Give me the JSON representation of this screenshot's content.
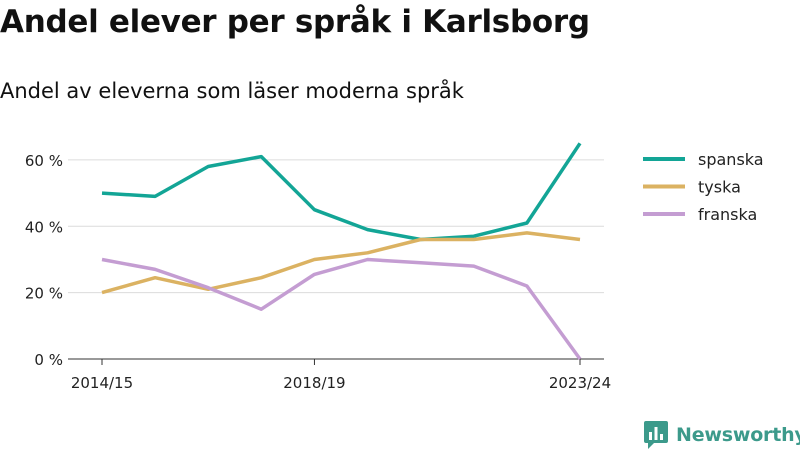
{
  "title": "Andel elever per språk i Karlsborg",
  "subtitle": "Andel av eleverna som läser moderna språk",
  "brand": "Newsworthy",
  "colors": {
    "spanska": "#13a596",
    "tyska": "#dbb262",
    "franska": "#c49dd2",
    "brand": "#3c9a8b"
  },
  "chart_data": {
    "type": "line",
    "x": [
      "2014/15",
      "2015/16",
      "2016/17",
      "2017/18",
      "2018/19",
      "2019/20",
      "2020/21",
      "2021/22",
      "2022/23",
      "2023/24"
    ],
    "x_tick_labels": [
      "2014/15",
      "2018/19",
      "2023/24"
    ],
    "y_ticks": [
      0,
      20,
      40,
      60
    ],
    "y_tick_labels": [
      "0 %",
      "20 %",
      "40 %",
      "60 %"
    ],
    "ylim": [
      0,
      66
    ],
    "grid": true,
    "legend_position": "right",
    "series": [
      {
        "name": "spanska",
        "values": [
          50,
          49,
          58,
          61,
          45,
          39,
          36,
          37,
          41,
          65
        ]
      },
      {
        "name": "tyska",
        "values": [
          20,
          24.5,
          21,
          24.5,
          30,
          32,
          36,
          36,
          38,
          36
        ]
      },
      {
        "name": "franska",
        "values": [
          30,
          27,
          21.5,
          15,
          25.5,
          30,
          29,
          28,
          22,
          0
        ]
      }
    ]
  }
}
